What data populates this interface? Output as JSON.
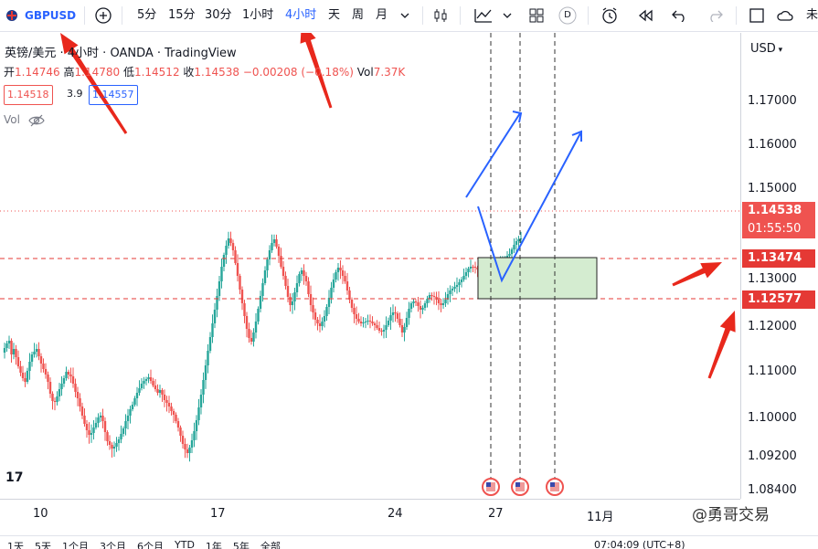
{
  "toolbar": {
    "symbol": "GBPUSD",
    "intervals": [
      "5分",
      "15分",
      "30分",
      "1小时",
      "4小时",
      "天",
      "周",
      "月"
    ],
    "active_interval": "4小时",
    "d_label": "D",
    "last_label": "未"
  },
  "legend": {
    "title": "英镑/美元 · 4小时 · OANDA · TradingView",
    "open_label": "开",
    "open": "1.14746",
    "high_label": "高",
    "high": "1.14780",
    "low_label": "低",
    "low": "1.14512",
    "close_label": "收",
    "close": "1.14538",
    "change": "−0.00208 (−0.18%)",
    "vol_label": "Vol",
    "vol": "7.37K",
    "bid": "1.14518",
    "spread": "3.9",
    "ask": "1.14557",
    "vol_indicator": "Vol"
  },
  "currency": "USD",
  "price_axis": {
    "labels": [
      "1.17000",
      "1.16000",
      "1.15000",
      "1.13000",
      "1.12000",
      "1.11000",
      "1.10000",
      "1.09200",
      "1.08400"
    ],
    "current_price": "1.14538",
    "countdown": "01:55:50",
    "level_1": "1.13474",
    "level_2": "1.12577"
  },
  "time_axis": {
    "labels": [
      "10",
      "17",
      "24",
      "27",
      "11月"
    ]
  },
  "watermark": "@勇哥交易",
  "logo_text": "17",
  "bottom": {
    "items": [
      "1天",
      "5天",
      "1个月",
      "3个月",
      "6个月",
      "YTD",
      "1年",
      "5年",
      "全部"
    ],
    "time": "07:04:09 (UTC+8)"
  },
  "colors": {
    "up": "#26a69a",
    "down": "#ef5350",
    "level": "#e53935",
    "arrow_red": "#e8281c",
    "projection": "#2962ff",
    "zone": "#d4ecd0"
  }
}
